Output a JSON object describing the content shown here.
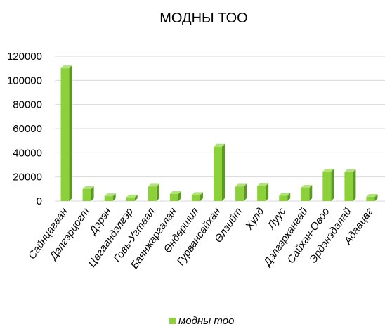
{
  "chart_data": {
    "type": "bar",
    "title": "МОДНЫ ТОО",
    "categories": [
      "Сайнцагаан",
      "Дэлгэрцогт",
      "Дэрэн",
      "Цагаандэлгэр",
      "Говь-Угтаал",
      "Баянжаргалан",
      "Өндөршил",
      "Гурвансайхан",
      "Өлзийт",
      "Хулд",
      "Луус",
      "Дэлгэрхангай",
      "Сайхан-Овоо",
      "Эрдэнэдалай",
      "Адаацаг"
    ],
    "series": [
      {
        "name": "модны тоо",
        "values": [
          110000,
          10000,
          4000,
          3000,
          12000,
          6000,
          5000,
          45000,
          12000,
          12500,
          4500,
          11000,
          24500,
          24000,
          3500
        ]
      }
    ],
    "ylim": [
      0,
      120000
    ],
    "yticks": [
      "0",
      "20000",
      "40000",
      "60000",
      "80000",
      "100000",
      "120000"
    ],
    "grid": true,
    "legend_position": "bottom",
    "colors": {
      "bar_front": "#8cd13a",
      "bar_side": "#5a9a1e",
      "bar_top": "#b2e27a",
      "grid": "#d9d9d9"
    }
  }
}
